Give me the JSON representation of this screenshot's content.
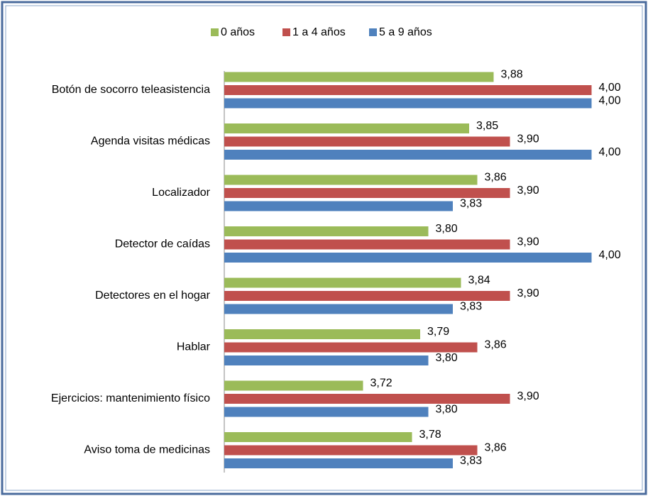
{
  "chart_data": {
    "type": "hbar",
    "categories": [
      "Botón de socorro teleasistencia",
      "Agenda visitas médicas",
      "Localizador",
      "Detector de caídas",
      "Detectores en el hogar",
      "Hablar",
      "Ejercicios: mantenimiento físico",
      "Aviso toma de medicinas"
    ],
    "series": [
      {
        "name": "0 años",
        "color": "#9bbb59",
        "values": [
          3.88,
          3.85,
          3.86,
          3.8,
          3.84,
          3.79,
          3.72,
          3.78
        ],
        "value_labels": [
          "3,88",
          "3,85",
          "3,86",
          "3,80",
          "3,84",
          "3,79",
          "3,72",
          "3,78"
        ]
      },
      {
        "name": "1 a 4 años",
        "color": "#c0504d",
        "values": [
          4.0,
          3.9,
          3.9,
          3.9,
          3.9,
          3.86,
          3.9,
          3.86
        ],
        "value_labels": [
          "4,00",
          "3,90",
          "3,90",
          "3,90",
          "3,90",
          "3,86",
          "3,90",
          "3,86"
        ]
      },
      {
        "name": "5 a 9 años",
        "color": "#4f81bd",
        "values": [
          4.0,
          4.0,
          3.83,
          4.0,
          3.83,
          3.8,
          3.8,
          3.83
        ],
        "value_labels": [
          "4,00",
          "4,00",
          "3,83",
          "4,00",
          "3,83",
          "3,80",
          "3,80",
          "3,83"
        ]
      }
    ],
    "xlim": [
      3.55,
      4.05
    ],
    "legend": "top"
  }
}
